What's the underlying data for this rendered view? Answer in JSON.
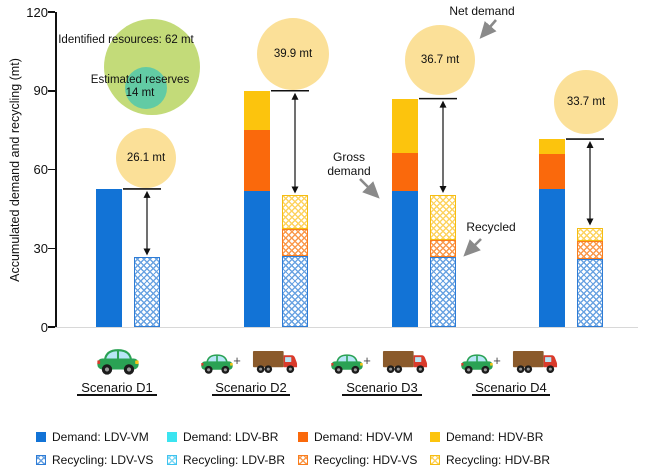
{
  "y_axis": {
    "title": "Accumulated demand and recycling (mt)",
    "ticks": [
      0,
      30,
      60,
      90,
      120
    ]
  },
  "resources": {
    "identified_label": "Identified resources: 62 mt",
    "reserves_line1": "Estimated reserves",
    "reserves_line2": "14 mt"
  },
  "annotations": {
    "net_demand": "Net demand",
    "gross_demand": "Gross demand",
    "recycled": "Recycled"
  },
  "net_demand_circles": [
    "26.1 mt",
    "39.9 mt",
    "36.7 mt",
    "33.7 mt"
  ],
  "scenarios": [
    {
      "label": "Scenario D1",
      "vehicles": [
        "car"
      ]
    },
    {
      "label": "Scenario D2",
      "vehicles": [
        "car",
        "truck"
      ]
    },
    {
      "label": "Scenario D3",
      "vehicles": [
        "car",
        "truck"
      ]
    },
    {
      "label": "Scenario D4",
      "vehicles": [
        "car",
        "truck"
      ]
    }
  ],
  "legend": {
    "rows": [
      [
        {
          "label": "Demand: LDV-VM",
          "swatch": "solid-blue"
        },
        {
          "label": "Demand: LDV-BR",
          "swatch": "solid-cyan"
        },
        {
          "label": "Demand: HDV-VM",
          "swatch": "solid-orange"
        },
        {
          "label": "Demand: HDV-BR",
          "swatch": "solid-yellow"
        }
      ],
      [
        {
          "label": "Recycling: LDV-VS",
          "swatch": "hatch-blue"
        },
        {
          "label": "Recycling: LDV-BR",
          "swatch": "hatch-cyan"
        },
        {
          "label": "Recycling: HDV-VS",
          "swatch": "hatch-orange"
        },
        {
          "label": "Recycling: HDV-BR",
          "swatch": "hatch-yellow"
        }
      ]
    ]
  },
  "colors": {
    "demand_ldv_vm": "#1273d6",
    "demand_ldv_br": "#3be4f0",
    "demand_hdv_vm": "#fa690c",
    "demand_hdv_br": "#fcc40d",
    "recycling_ldv_vs": "#2e7cd6",
    "recycling_ldv_br": "#3fc3ef",
    "recycling_hdv_vs": "#f97d1d",
    "recycling_hdv_br": "#f5bd12",
    "net_demand_circle": "#fbe098",
    "identified_resources_circle": "#c3db79",
    "estimated_reserves_circle": "#62cba4",
    "annotation_arrow": "#8a8a8a"
  },
  "chart_data": {
    "type": "bar",
    "stacked": true,
    "title": "",
    "xlabel": "",
    "ylabel": "Accumulated demand and recycling (mt)",
    "ylim": [
      0,
      120
    ],
    "yticks": [
      0,
      30,
      60,
      90,
      120
    ],
    "grid": false,
    "legend_position": "bottom",
    "categories": [
      "Scenario D1",
      "Scenario D2",
      "Scenario D3",
      "Scenario D4"
    ],
    "series": [
      {
        "name": "Demand: LDV-VM",
        "group": "demand",
        "values": [
          52.6,
          52.0,
          51.8,
          52.6
        ]
      },
      {
        "name": "Demand: LDV-BR",
        "group": "demand",
        "values": [
          0,
          0,
          0,
          0
        ]
      },
      {
        "name": "Demand: HDV-VM",
        "group": "demand",
        "values": [
          0,
          23.0,
          14.5,
          13.3
        ]
      },
      {
        "name": "Demand: HDV-BR",
        "group": "demand",
        "values": [
          0,
          15.0,
          20.7,
          5.7
        ]
      },
      {
        "name": "Recycling: LDV-VS",
        "group": "recycling",
        "values": [
          26.5,
          27.0,
          26.7,
          25.9
        ]
      },
      {
        "name": "Recycling: LDV-BR",
        "group": "recycling",
        "values": [
          0,
          0,
          0,
          0
        ]
      },
      {
        "name": "Recycling: HDV-VS",
        "group": "recycling",
        "values": [
          0,
          10.4,
          6.3,
          6.9
        ]
      },
      {
        "name": "Recycling: HDV-BR",
        "group": "recycling",
        "values": [
          0,
          12.7,
          17.3,
          5.1
        ]
      }
    ],
    "gross_demand_totals_mt": [
      52.6,
      90.0,
      87.0,
      71.6
    ],
    "recycled_totals_mt": [
      26.5,
      50.1,
      50.3,
      37.9
    ],
    "net_demand_mt": [
      26.1,
      39.9,
      36.7,
      33.7
    ],
    "identified_resources_mt": 62,
    "estimated_reserves_mt": 14
  }
}
